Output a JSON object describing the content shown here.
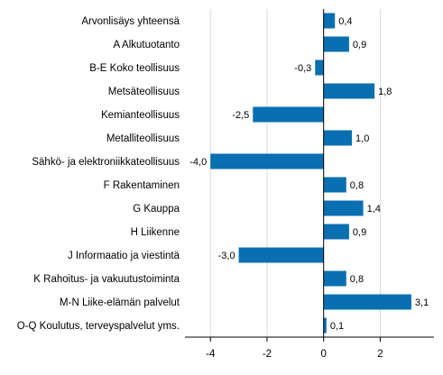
{
  "chart_data": {
    "type": "bar",
    "orientation": "horizontal",
    "categories": [
      "Arvonlisäys yhteensä",
      "A Alkutuotanto",
      "B-E Koko teollisuus",
      "Metsäteollisuus",
      "Kemianteollisuus",
      "Metalliteollisuus",
      "Sähkö- ja elektroniikkateollisuus",
      "F Rakentaminen",
      "G Kauppa",
      "H Liikenne",
      "J Informaatio ja viestintä",
      "K Rahoitus- ja vakuutustoiminta",
      "M-N Liike-elämän palvelut",
      "O-Q Koulutus, terveyspalvelut yms."
    ],
    "values": [
      0.4,
      0.9,
      -0.3,
      1.8,
      -2.5,
      1.0,
      -4.0,
      0.8,
      1.4,
      0.9,
      -3.0,
      0.8,
      3.1,
      0.1
    ],
    "value_labels": [
      "0,4",
      "0,9",
      "-0,3",
      "1,8",
      "-2,5",
      "1,0",
      "-4,0",
      "0,8",
      "1,4",
      "0,9",
      "-3,0",
      "0,8",
      "3,1",
      "0,1"
    ],
    "xticks": [
      -4,
      -2,
      0,
      2
    ],
    "xtick_labels": [
      "-4",
      "-2",
      "0",
      "2"
    ],
    "xlim": [
      -4.9,
      3.9
    ],
    "grid": "vertical",
    "bar_color": "#0a6fb0",
    "grid_color": "#d9d9d9",
    "axis_color": "#000000"
  }
}
